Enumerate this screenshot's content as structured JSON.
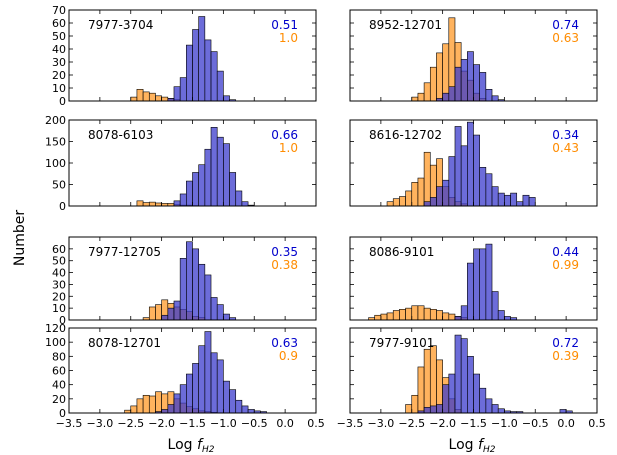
{
  "figure": {
    "ylabel": "Number",
    "xlabel_prefix": "Log ",
    "xlabel_var": "f",
    "xlabel_sub": "H2"
  },
  "chart_data": [
    {
      "type": "bar",
      "label": "7977-3704",
      "stat_blue": "0.51",
      "stat_orange": "1.0",
      "xlim": [
        -3.5,
        0.5
      ],
      "ylim": [
        0,
        70
      ],
      "yticks": [
        0,
        10,
        20,
        30,
        40,
        50,
        60,
        70
      ],
      "show_xtick_labels": false,
      "bin_width": 0.1,
      "series": [
        {
          "color": "#ff9a28",
          "bins": [
            [
              -2.45,
              3
            ],
            [
              -2.35,
              9
            ],
            [
              -2.25,
              7
            ],
            [
              -2.15,
              6
            ],
            [
              -2.05,
              4
            ],
            [
              -1.95,
              3
            ],
            [
              -1.85,
              2
            ],
            [
              -1.75,
              1
            ]
          ]
        },
        {
          "color": "#3b3bcc",
          "bins": [
            [
              -1.85,
              2
            ],
            [
              -1.75,
              11
            ],
            [
              -1.65,
              18
            ],
            [
              -1.55,
              43
            ],
            [
              -1.45,
              55
            ],
            [
              -1.35,
              65
            ],
            [
              -1.25,
              47
            ],
            [
              -1.15,
              38
            ],
            [
              -1.05,
              23
            ],
            [
              -0.95,
              4
            ],
            [
              -0.85,
              1
            ]
          ]
        }
      ]
    },
    {
      "type": "bar",
      "label": "8952-12701",
      "stat_blue": "0.74",
      "stat_orange": "0.63",
      "xlim": [
        -3.5,
        0.5
      ],
      "ylim": [
        0,
        70
      ],
      "yticks": [
        0,
        10,
        20,
        30,
        40,
        50,
        60,
        70
      ],
      "ytick_labels": false,
      "show_xtick_labels": false,
      "bin_width": 0.1,
      "series": [
        {
          "color": "#ff9a28",
          "bins": [
            [
              -2.45,
              3
            ],
            [
              -2.35,
              6
            ],
            [
              -2.25,
              14
            ],
            [
              -2.15,
              26
            ],
            [
              -2.05,
              37
            ],
            [
              -1.95,
              44
            ],
            [
              -1.85,
              64
            ],
            [
              -1.75,
              45
            ],
            [
              -1.65,
              23
            ],
            [
              -1.55,
              16
            ],
            [
              -1.45,
              6
            ],
            [
              -1.35,
              2
            ]
          ]
        },
        {
          "color": "#3b3bcc",
          "bins": [
            [
              -2.05,
              2
            ],
            [
              -1.95,
              6
            ],
            [
              -1.85,
              11
            ],
            [
              -1.75,
              26
            ],
            [
              -1.65,
              32
            ],
            [
              -1.55,
              38
            ],
            [
              -1.45,
              28
            ],
            [
              -1.35,
              22
            ],
            [
              -1.25,
              9
            ],
            [
              -1.15,
              4
            ],
            [
              -1.05,
              1
            ]
          ]
        }
      ]
    },
    {
      "type": "bar",
      "label": "8078-6103",
      "stat_blue": "0.66",
      "stat_orange": "1.0",
      "xlim": [
        -3.5,
        0.5
      ],
      "ylim": [
        0,
        200
      ],
      "yticks": [
        0,
        50,
        100,
        150,
        200
      ],
      "show_xtick_labels": false,
      "bin_width": 0.1,
      "series": [
        {
          "color": "#ff9a28",
          "bins": [
            [
              -2.35,
              12
            ],
            [
              -2.25,
              8
            ],
            [
              -2.15,
              9
            ],
            [
              -2.05,
              7
            ],
            [
              -1.95,
              6
            ],
            [
              -1.85,
              6
            ],
            [
              -1.75,
              3
            ],
            [
              -1.65,
              2
            ],
            [
              -1.55,
              2
            ],
            [
              -1.45,
              1
            ]
          ]
        },
        {
          "color": "#3b3bcc",
          "bins": [
            [
              -1.75,
              12
            ],
            [
              -1.65,
              28
            ],
            [
              -1.55,
              58
            ],
            [
              -1.45,
              78
            ],
            [
              -1.35,
              96
            ],
            [
              -1.25,
              132
            ],
            [
              -1.15,
              183
            ],
            [
              -1.05,
              160
            ],
            [
              -0.95,
              145
            ],
            [
              -0.85,
              78
            ],
            [
              -0.75,
              35
            ],
            [
              -0.65,
              10
            ],
            [
              -0.55,
              2
            ]
          ]
        }
      ]
    },
    {
      "type": "bar",
      "label": "8616-12702",
      "stat_blue": "0.34",
      "stat_orange": "0.43",
      "xlim": [
        -3.5,
        0.5
      ],
      "ylim": [
        0,
        200
      ],
      "yticks": [
        0,
        50,
        100,
        150,
        200
      ],
      "ytick_labels": false,
      "show_xtick_labels": false,
      "bin_width": 0.1,
      "series": [
        {
          "color": "#ff9a28",
          "bins": [
            [
              -2.85,
              10
            ],
            [
              -2.75,
              17
            ],
            [
              -2.65,
              22
            ],
            [
              -2.55,
              35
            ],
            [
              -2.45,
              55
            ],
            [
              -2.35,
              65
            ],
            [
              -2.25,
              125
            ],
            [
              -2.15,
              95
            ],
            [
              -2.05,
              110
            ],
            [
              -1.95,
              45
            ],
            [
              -1.85,
              20
            ],
            [
              -1.75,
              10
            ],
            [
              -1.65,
              5
            ]
          ]
        },
        {
          "color": "#3b3bcc",
          "bins": [
            [
              -2.25,
              10
            ],
            [
              -2.15,
              20
            ],
            [
              -2.05,
              45
            ],
            [
              -1.95,
              60
            ],
            [
              -1.85,
              115
            ],
            [
              -1.75,
              185
            ],
            [
              -1.65,
              140
            ],
            [
              -1.55,
              195
            ],
            [
              -1.45,
              165
            ],
            [
              -1.35,
              90
            ],
            [
              -1.25,
              75
            ],
            [
              -1.15,
              45
            ],
            [
              -1.05,
              30
            ],
            [
              -0.95,
              25
            ],
            [
              -0.85,
              30
            ],
            [
              -0.75,
              10
            ],
            [
              -0.65,
              25
            ],
            [
              -0.55,
              20
            ]
          ]
        }
      ]
    },
    {
      "type": "bar",
      "label": "7977-12705",
      "stat_blue": "0.35",
      "stat_orange": "0.38",
      "xlim": [
        -3.5,
        0.5
      ],
      "ylim": [
        0,
        70
      ],
      "yticks": [
        0,
        10,
        20,
        30,
        40,
        50,
        60
      ],
      "show_xtick_labels": false,
      "bin_width": 0.1,
      "series": [
        {
          "color": "#ff9a28",
          "bins": [
            [
              -2.25,
              2
            ],
            [
              -2.15,
              11
            ],
            [
              -2.05,
              13
            ],
            [
              -1.95,
              17
            ],
            [
              -1.85,
              14
            ],
            [
              -1.75,
              11
            ],
            [
              -1.65,
              9
            ],
            [
              -1.55,
              7
            ],
            [
              -1.45,
              3
            ],
            [
              -1.35,
              2
            ]
          ]
        },
        {
          "color": "#3b3bcc",
          "bins": [
            [
              -1.95,
              4
            ],
            [
              -1.85,
              10
            ],
            [
              -1.75,
              16
            ],
            [
              -1.65,
              52
            ],
            [
              -1.55,
              66
            ],
            [
              -1.45,
              60
            ],
            [
              -1.35,
              47
            ],
            [
              -1.25,
              38
            ],
            [
              -1.15,
              19
            ],
            [
              -1.05,
              13
            ],
            [
              -0.95,
              5
            ],
            [
              -0.85,
              2
            ]
          ]
        }
      ]
    },
    {
      "type": "bar",
      "label": "8086-9101",
      "stat_blue": "0.44",
      "stat_orange": "0.99",
      "xlim": [
        -3.5,
        0.5
      ],
      "ylim": [
        0,
        70
      ],
      "yticks": [
        0,
        10,
        20,
        30,
        40,
        50,
        60
      ],
      "ytick_labels": false,
      "show_xtick_labels": false,
      "bin_width": 0.1,
      "series": [
        {
          "color": "#ff9a28",
          "bins": [
            [
              -3.15,
              2
            ],
            [
              -3.05,
              4
            ],
            [
              -2.95,
              5
            ],
            [
              -2.85,
              6
            ],
            [
              -2.75,
              8
            ],
            [
              -2.65,
              9
            ],
            [
              -2.55,
              10
            ],
            [
              -2.45,
              12
            ],
            [
              -2.35,
              12
            ],
            [
              -2.25,
              10
            ],
            [
              -2.15,
              9
            ],
            [
              -2.05,
              8
            ],
            [
              -1.95,
              6
            ],
            [
              -1.85,
              5
            ],
            [
              -1.75,
              3
            ],
            [
              -1.65,
              2
            ]
          ]
        },
        {
          "color": "#3b3bcc",
          "bins": [
            [
              -1.75,
              3
            ],
            [
              -1.65,
              12
            ],
            [
              -1.55,
              48
            ],
            [
              -1.45,
              60
            ],
            [
              -1.35,
              60
            ],
            [
              -1.25,
              64
            ],
            [
              -1.15,
              24
            ],
            [
              -1.05,
              8
            ],
            [
              -0.95,
              3
            ],
            [
              -0.85,
              2
            ]
          ]
        }
      ]
    },
    {
      "type": "bar",
      "label": "8078-12701",
      "stat_blue": "0.63",
      "stat_orange": "0.9",
      "xlim": [
        -3.5,
        0.5
      ],
      "ylim": [
        0,
        120
      ],
      "yticks": [
        0,
        20,
        40,
        60,
        80,
        100,
        120
      ],
      "xticks": [
        -3.5,
        -3.0,
        -2.5,
        -2.0,
        -1.5,
        -1.0,
        -0.5,
        0.0,
        0.5
      ],
      "xtick_labels": [
        "−3.5",
        "−3.0",
        "−2.5",
        "−2.0",
        "−1.5",
        "−1.0",
        "−0.5",
        "0.0",
        "0.5"
      ],
      "show_xtick_labels": true,
      "bin_width": 0.1,
      "series": [
        {
          "color": "#ff9a28",
          "bins": [
            [
              -2.55,
              4
            ],
            [
              -2.45,
              10
            ],
            [
              -2.35,
              20
            ],
            [
              -2.25,
              25
            ],
            [
              -2.15,
              24
            ],
            [
              -2.05,
              30
            ],
            [
              -1.95,
              27
            ],
            [
              -1.85,
              30
            ],
            [
              -1.75,
              20
            ],
            [
              -1.65,
              14
            ],
            [
              -1.55,
              9
            ],
            [
              -1.45,
              6
            ],
            [
              -1.35,
              3
            ],
            [
              -1.25,
              2
            ],
            [
              -1.15,
              1
            ]
          ]
        },
        {
          "color": "#3b3bcc",
          "bins": [
            [
              -2.05,
              2
            ],
            [
              -1.95,
              5
            ],
            [
              -1.85,
              12
            ],
            [
              -1.75,
              27
            ],
            [
              -1.65,
              40
            ],
            [
              -1.55,
              55
            ],
            [
              -1.45,
              70
            ],
            [
              -1.35,
              95
            ],
            [
              -1.25,
              115
            ],
            [
              -1.15,
              85
            ],
            [
              -1.05,
              75
            ],
            [
              -0.95,
              45
            ],
            [
              -0.85,
              33
            ],
            [
              -0.75,
              18
            ],
            [
              -0.65,
              10
            ],
            [
              -0.55,
              5
            ],
            [
              -0.45,
              3
            ],
            [
              -0.35,
              2
            ]
          ]
        }
      ]
    },
    {
      "type": "bar",
      "label": "7977-9101",
      "stat_blue": "0.72",
      "stat_orange": "0.39",
      "xlim": [
        -3.5,
        0.5
      ],
      "ylim": [
        0,
        120
      ],
      "yticks": [
        0,
        20,
        40,
        60,
        80,
        100,
        120
      ],
      "ytick_labels": false,
      "xticks": [
        -3.5,
        -3.0,
        -2.5,
        -2.0,
        -1.5,
        -1.0,
        -0.5,
        0.0,
        0.5
      ],
      "xtick_labels": [
        "−3.5",
        "−3.0",
        "−2.5",
        "−2.0",
        "−1.5",
        "−1.0",
        "−0.5",
        "0.0",
        "0.5"
      ],
      "show_xtick_labels": true,
      "bin_width": 0.1,
      "series": [
        {
          "color": "#ff9a28",
          "bins": [
            [
              -2.55,
              12
            ],
            [
              -2.45,
              25
            ],
            [
              -2.35,
              65
            ],
            [
              -2.25,
              90
            ],
            [
              -2.15,
              95
            ],
            [
              -2.05,
              75
            ],
            [
              -1.95,
              50
            ],
            [
              -1.85,
              20
            ],
            [
              -1.75,
              5
            ]
          ]
        },
        {
          "color": "#3b3bcc",
          "bins": [
            [
              -2.35,
              3
            ],
            [
              -2.25,
              8
            ],
            [
              -2.15,
              10
            ],
            [
              -2.05,
              12
            ],
            [
              -1.95,
              40
            ],
            [
              -1.85,
              55
            ],
            [
              -1.75,
              110
            ],
            [
              -1.65,
              105
            ],
            [
              -1.55,
              80
            ],
            [
              -1.45,
              55
            ],
            [
              -1.35,
              35
            ],
            [
              -1.25,
              20
            ],
            [
              -1.15,
              12
            ],
            [
              -1.05,
              6
            ],
            [
              -0.95,
              3
            ],
            [
              -0.85,
              2
            ],
            [
              -0.75,
              2
            ],
            [
              -0.05,
              5
            ],
            [
              0.05,
              3
            ]
          ]
        }
      ]
    }
  ]
}
